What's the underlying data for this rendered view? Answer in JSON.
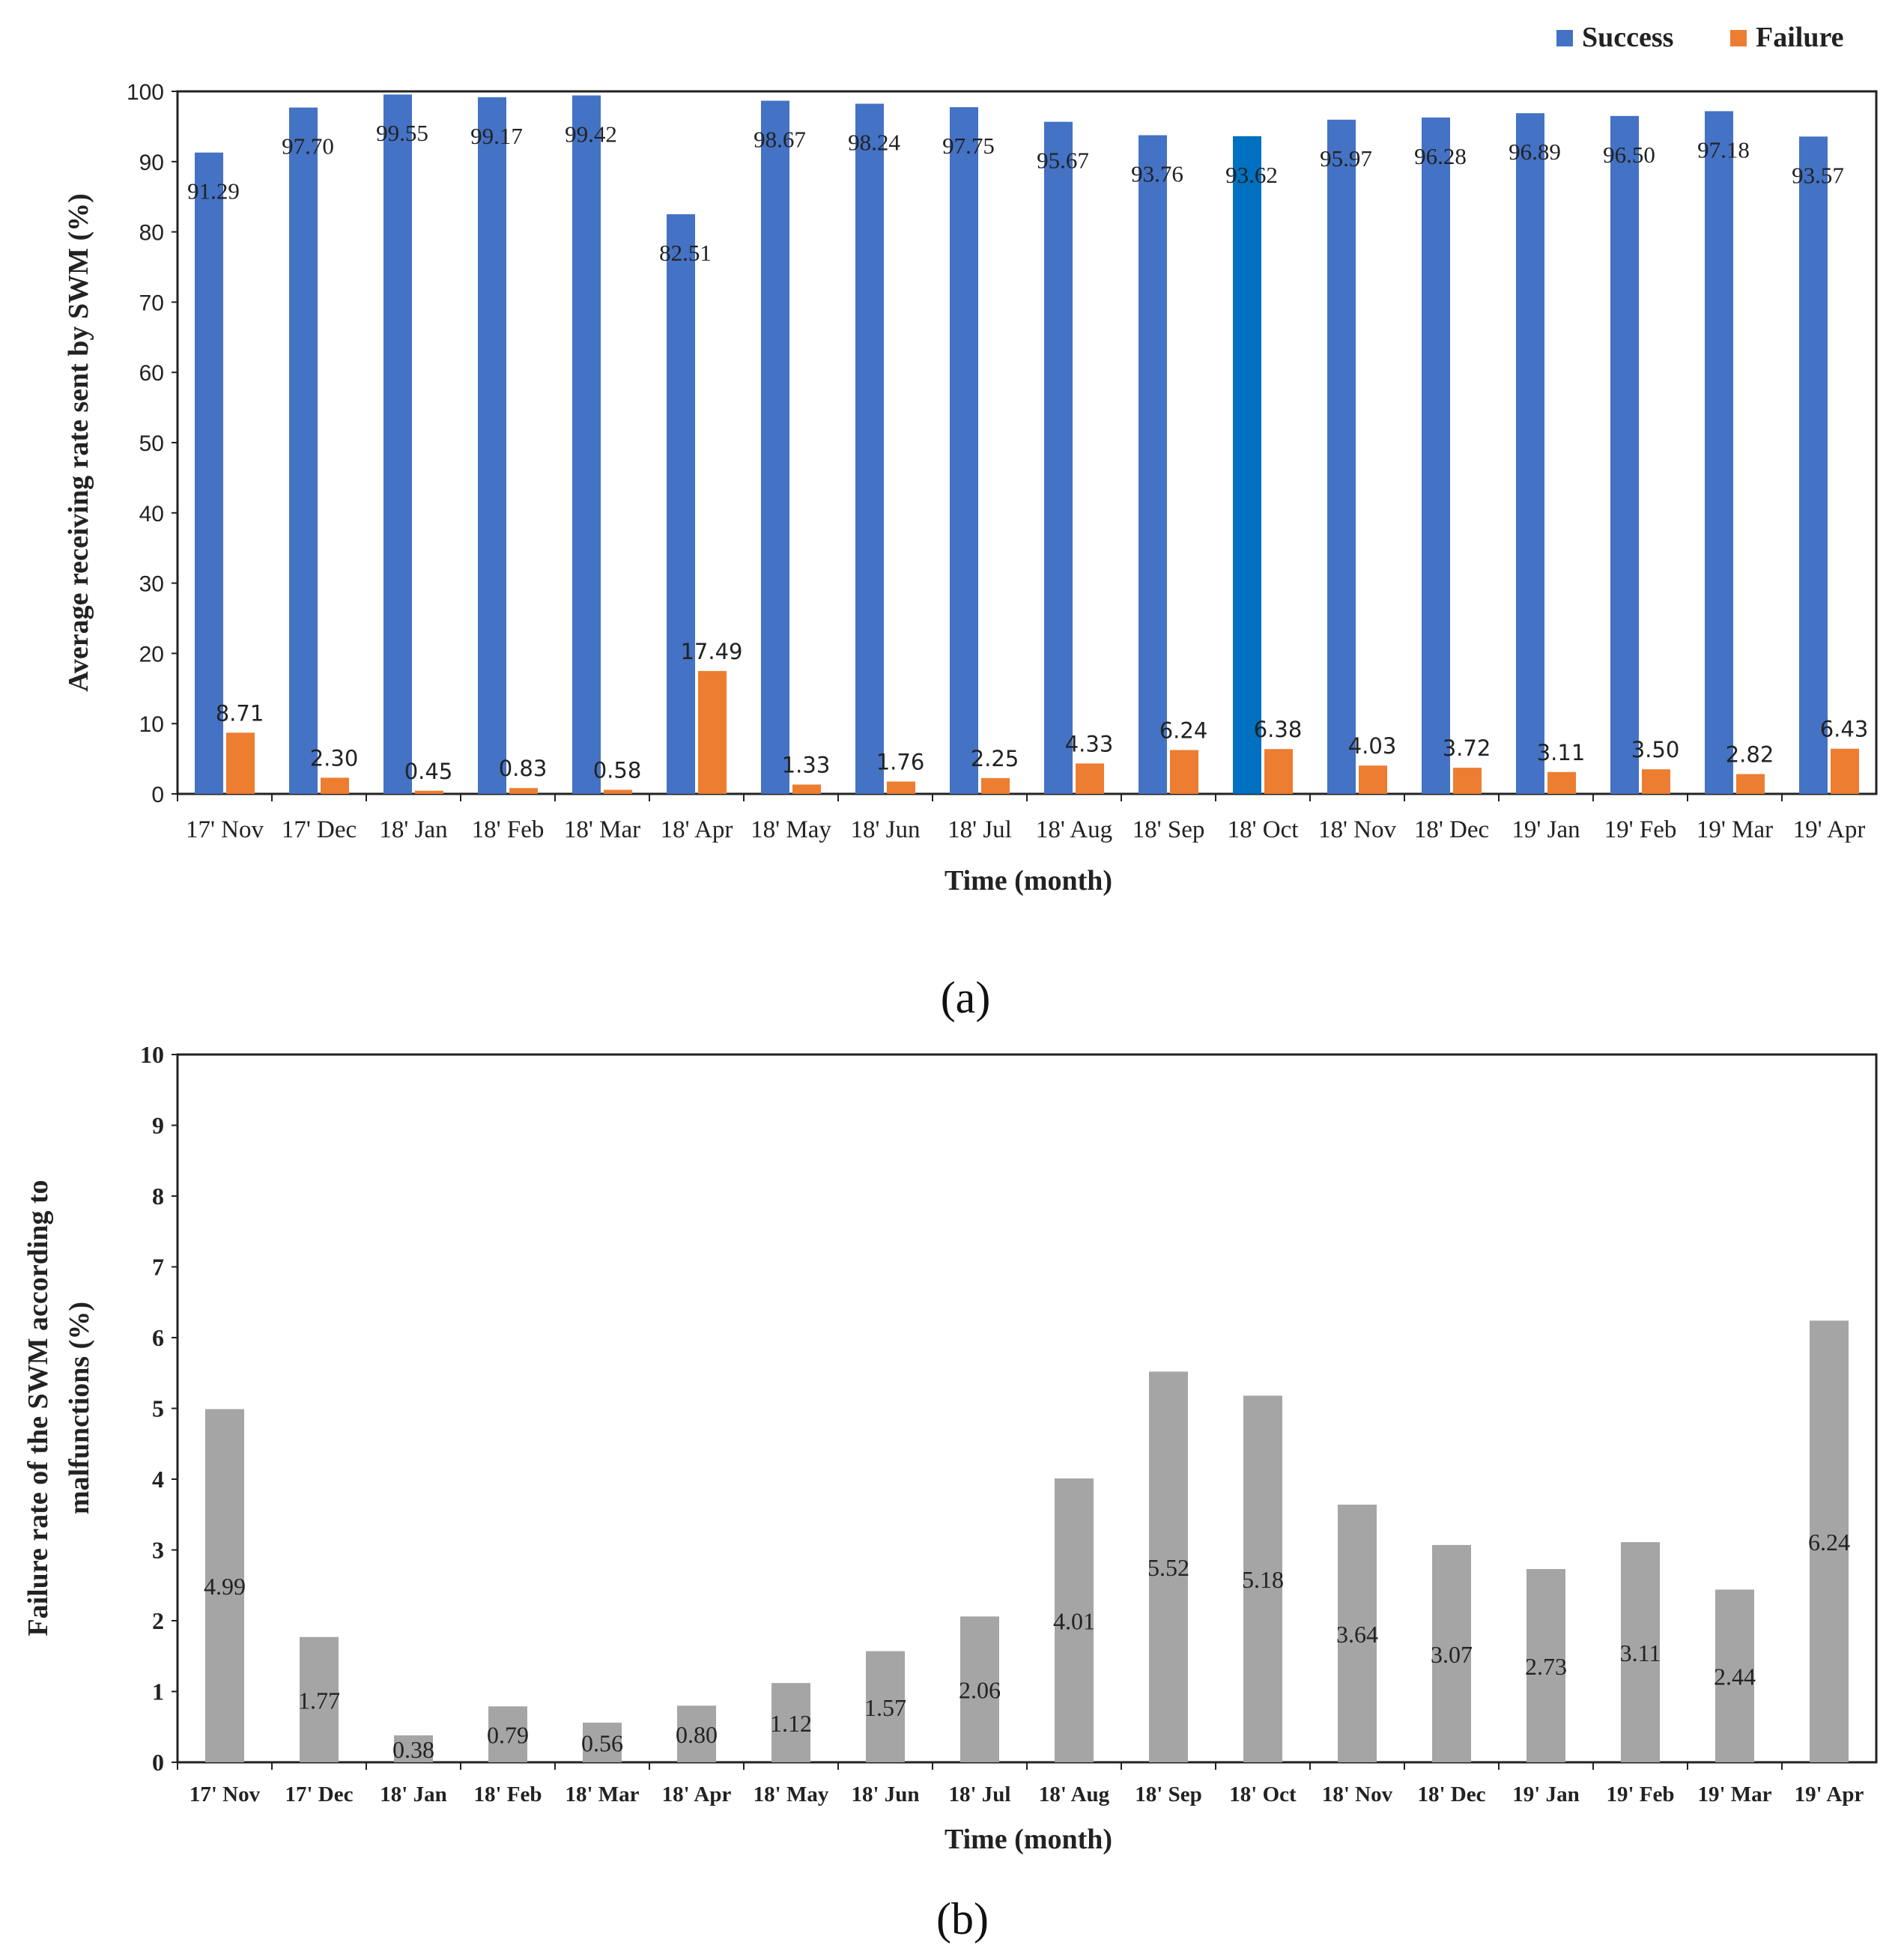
{
  "chart_data": [
    {
      "type": "bar",
      "panel": "a",
      "categories": [
        "17' Nov",
        "17' Dec",
        "18' Jan",
        "18' Feb",
        "18' Mar",
        "18' Apr",
        "18' May",
        "18' Jun",
        "18' Jul",
        "18' Aug",
        "18' Sep",
        "18' Oct",
        "18' Nov",
        "18' Dec",
        "19' Jan",
        "19' Feb",
        "19' Mar",
        "19' Apr"
      ],
      "series": [
        {
          "name": "Success",
          "color": "#4472C4",
          "highlight_color": "#0070C0",
          "highlight_index": 11,
          "values": [
            91.29,
            97.7,
            99.55,
            99.17,
            99.42,
            82.51,
            98.67,
            98.24,
            97.75,
            95.67,
            93.76,
            93.62,
            95.97,
            96.28,
            96.89,
            96.5,
            97.18,
            93.57
          ],
          "labels": [
            "91.29",
            "97.70",
            "99.55",
            "99.17",
            "99.42",
            "82.51",
            "98.67",
            "98.24",
            "97.75",
            "95.67",
            "93.76",
            "93.62",
            "95.97",
            "96.28",
            "96.89",
            "96.50",
            "97.18",
            "93.57"
          ]
        },
        {
          "name": "Failure",
          "color": "#ED7D31",
          "values": [
            8.71,
            2.3,
            0.45,
            0.83,
            0.58,
            17.49,
            1.33,
            1.76,
            2.25,
            4.33,
            6.24,
            6.38,
            4.03,
            3.72,
            3.11,
            3.5,
            2.82,
            6.43
          ],
          "labels": [
            "8.71",
            "2.30",
            "0.45",
            "0.83",
            "0.58",
            "17.49",
            "1.33",
            "1.76",
            "2.25",
            "4.33",
            "6.24",
            "6.38",
            "4.03",
            "3.72",
            "3.11",
            "3.50",
            "2.82",
            "6.43"
          ]
        }
      ],
      "xlabel": "Time (month)",
      "ylabel": "Average receiving rate sent by SWM (%)",
      "ylim": [
        0,
        100
      ],
      "yticks": [
        "0",
        "10",
        "20",
        "30",
        "40",
        "50",
        "60",
        "70",
        "80",
        "90",
        "100"
      ],
      "legend_position": "top-right",
      "grid": false
    },
    {
      "type": "bar",
      "panel": "b",
      "categories": [
        "17' Nov",
        "17' Dec",
        "18' Jan",
        "18' Feb",
        "18' Mar",
        "18' Apr",
        "18' May",
        "18' Jun",
        "18' Jul",
        "18' Aug",
        "18' Sep",
        "18' Oct",
        "18' Nov",
        "18' Dec",
        "19' Jan",
        "19' Feb",
        "19' Mar",
        "19' Apr"
      ],
      "series": [
        {
          "name": "Failure rate",
          "color": "#A5A5A5",
          "values": [
            4.99,
            1.77,
            0.38,
            0.79,
            0.56,
            0.8,
            1.12,
            1.57,
            2.06,
            4.01,
            5.52,
            5.18,
            3.64,
            3.07,
            2.73,
            3.11,
            2.44,
            6.24
          ],
          "labels": [
            "4.99",
            "1.77",
            "0.38",
            "0.79",
            "0.56",
            "0.80",
            "1.12",
            "1.57",
            "2.06",
            "4.01",
            "5.52",
            "5.18",
            "3.64",
            "3.07",
            "2.73",
            "3.11",
            "2.44",
            "6.24"
          ]
        }
      ],
      "xlabel": "Time (month)",
      "ylabel_line1": "Failure rate of the SWM according to",
      "ylabel_line2": "malfunctions  (%)",
      "ylim": [
        0,
        10
      ],
      "yticks": [
        "0",
        "1",
        "2",
        "3",
        "4",
        "5",
        "6",
        "7",
        "8",
        "9",
        "10"
      ],
      "grid": false
    }
  ],
  "captions": {
    "a": "(a)",
    "b": "(b)"
  }
}
